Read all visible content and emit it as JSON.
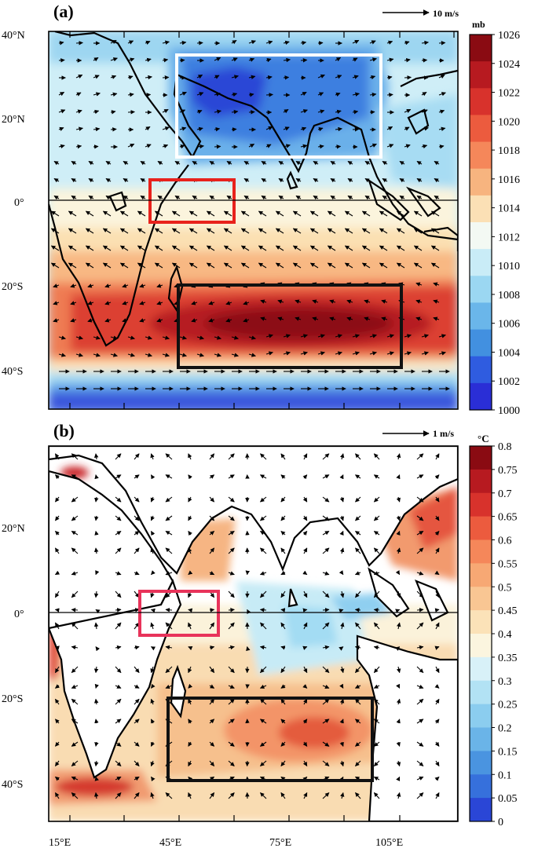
{
  "panel_a": {
    "label": "(a)",
    "vector_scale_label": "10 m/s",
    "colorbar_unit": "mb",
    "colorbar_ticks": [
      "1026",
      "1024",
      "1022",
      "1020",
      "1018",
      "1016",
      "1014",
      "1012",
      "1010",
      "1008",
      "1006",
      "1004",
      "1002",
      "1000"
    ],
    "colorbar_colors": [
      "#8a0b12",
      "#b71a20",
      "#d8322c",
      "#ec5b3e",
      "#f5875a",
      "#f7b47f",
      "#fbe0b5",
      "#f3f9f3",
      "#c9ecf7",
      "#9bd7f2",
      "#6ab6ea",
      "#4290e0",
      "#2f5ce0",
      "#2a2ed6"
    ],
    "y_labels": [
      "40°N",
      "20°N",
      "0°",
      "20°S",
      "40°S"
    ],
    "boxes": [
      {
        "name": "monsoon-box",
        "color": "#ffffff"
      },
      {
        "name": "equatorial-box",
        "color": "#e8221c"
      },
      {
        "name": "mascarene-box",
        "color": "#111111"
      }
    ]
  },
  "panel_b": {
    "label": "(b)",
    "vector_scale_label": "1 m/s",
    "colorbar_unit": "°C",
    "colorbar_ticks": [
      "0.8",
      "0.75",
      "0.7",
      "0.65",
      "0.6",
      "0.55",
      "0.5",
      "0.45",
      "0.4",
      "0.35",
      "0.3",
      "0.25",
      "0.2",
      "0.15",
      "0.1",
      "0.05",
      "0"
    ],
    "colorbar_colors": [
      "#8a0b12",
      "#b71a20",
      "#d8322c",
      "#ec5b3e",
      "#f5875a",
      "#f7a874",
      "#f9c693",
      "#fbe2b8",
      "#fbf5df",
      "#d8f1f8",
      "#b2e2f4",
      "#8bcdef",
      "#6ab4e8",
      "#4a94e0",
      "#3670dc",
      "#2a46d6"
    ],
    "y_labels": [
      "40°N",
      "20°N",
      "0°",
      "20°S",
      "40°S"
    ],
    "x_labels": [
      "15°E",
      "45°E",
      "75°E",
      "105°E"
    ],
    "boxes": [
      {
        "name": "equatorial-box",
        "color": "#e8335a"
      },
      {
        "name": "mascarene-box",
        "color": "#111111"
      }
    ]
  }
}
